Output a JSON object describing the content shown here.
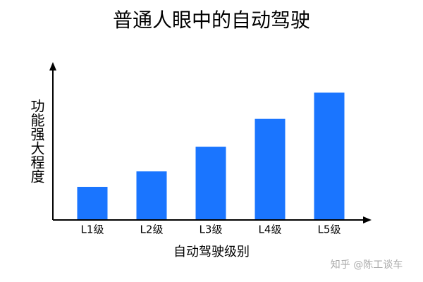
{
  "chart_data": {
    "type": "bar",
    "title": "普通人眼中的自动驾驶",
    "x_label": "自动驾驶级别",
    "y_label": "功能强大程度",
    "categories": [
      "L1级",
      "L2级",
      "L3级",
      "L4级",
      "L5级"
    ],
    "values": [
      21,
      31,
      47,
      65,
      82
    ],
    "color": "#1a75ff",
    "ylim": [
      0,
      100
    ],
    "watermark": "知乎 @陈工谈车"
  }
}
